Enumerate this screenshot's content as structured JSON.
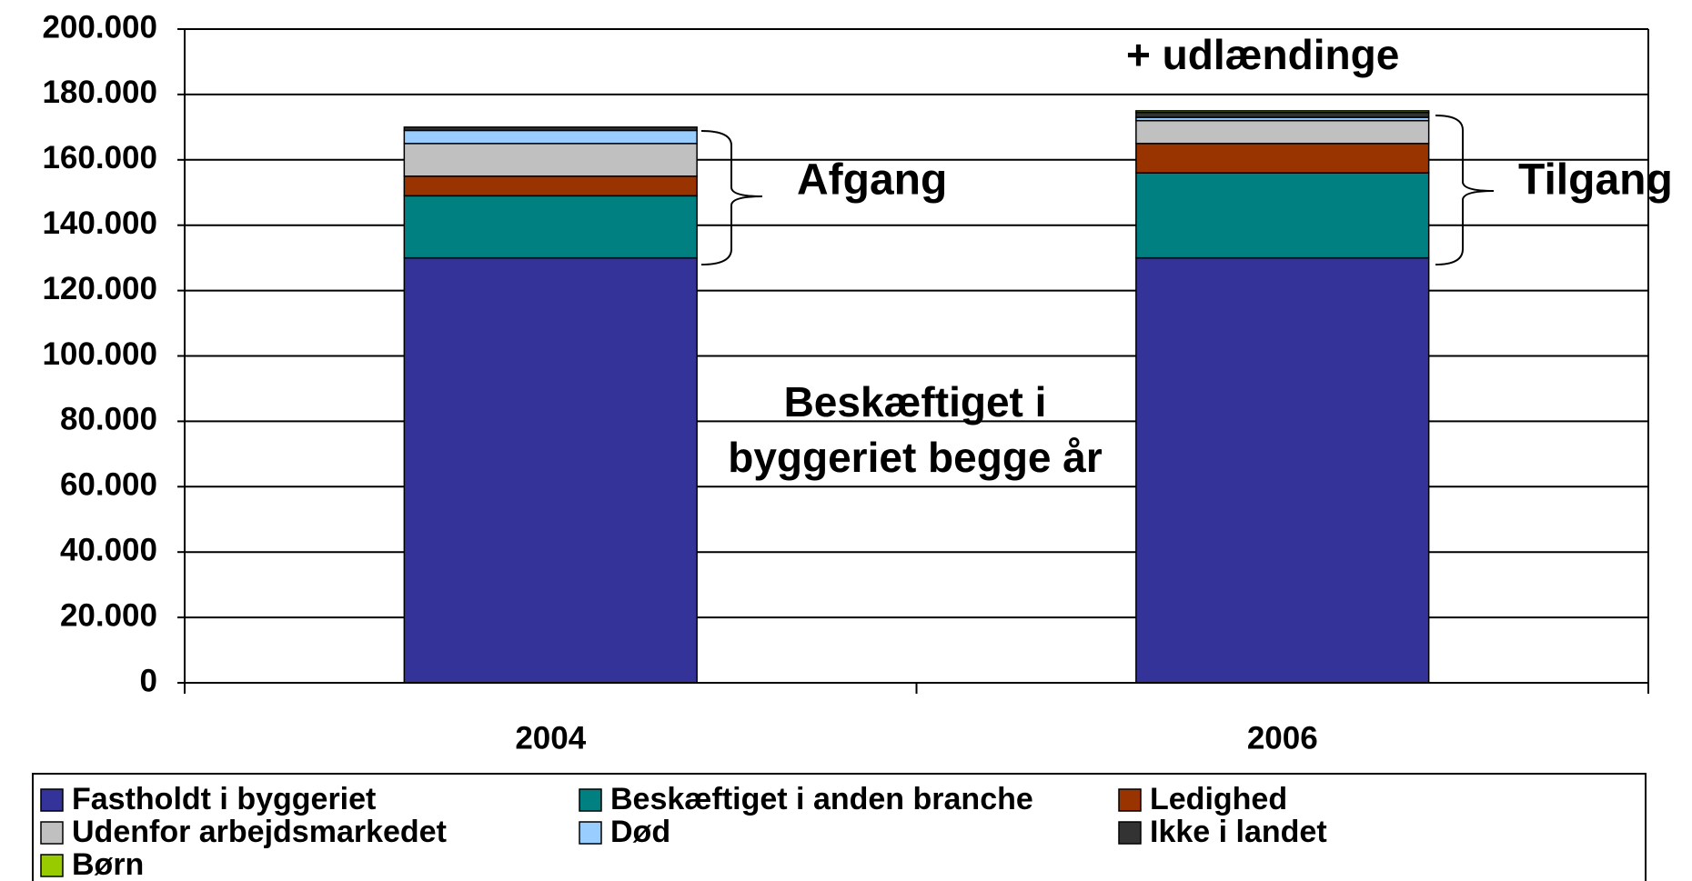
{
  "chart_data": {
    "type": "stacked_bar",
    "categories": [
      "2004",
      "2006"
    ],
    "series": [
      {
        "name": "Fastholdt i byggeriet",
        "color": "#333399",
        "values": [
          130000,
          130000
        ]
      },
      {
        "name": "Beskæftiget i anden branche",
        "color": "#008080",
        "values": [
          19000,
          26000
        ]
      },
      {
        "name": "Ledighed",
        "color": "#993300",
        "values": [
          6000,
          9000
        ]
      },
      {
        "name": "Udenfor arbejdsmarkedet",
        "color": "#c0c0c0",
        "values": [
          10000,
          7000
        ]
      },
      {
        "name": "Død",
        "color": "#99ccff",
        "values": [
          4000,
          1000
        ]
      },
      {
        "name": "Ikke i landet",
        "color": "#333333",
        "values": [
          1000,
          1500
        ]
      },
      {
        "name": "Børn",
        "color": "#99cc00",
        "values": [
          0,
          500
        ]
      }
    ],
    "ylim": [
      0,
      200000
    ],
    "yticks": [
      0,
      {
        "value": 20000,
        "label": "20.000"
      },
      {
        "value": 40000,
        "label": "40.000"
      },
      {
        "value": 60000,
        "label": "60.000"
      },
      {
        "value": 80000,
        "label": "80.000"
      },
      {
        "value": 100000,
        "label": "100.000"
      },
      {
        "value": 120000,
        "label": "120.000"
      },
      {
        "value": 140000,
        "label": "140.000"
      },
      {
        "value": 160000,
        "label": "160.000"
      },
      {
        "value": 180000,
        "label": "180.000"
      },
      {
        "value": 200000,
        "label": "200.000"
      }
    ],
    "grid": true,
    "annotations": {
      "left_brace": "Afgang",
      "right_brace": "Tilgang",
      "top_right": "+ udlændinge",
      "center": [
        "Beskæftiget i",
        "byggeriet begge år"
      ]
    }
  }
}
